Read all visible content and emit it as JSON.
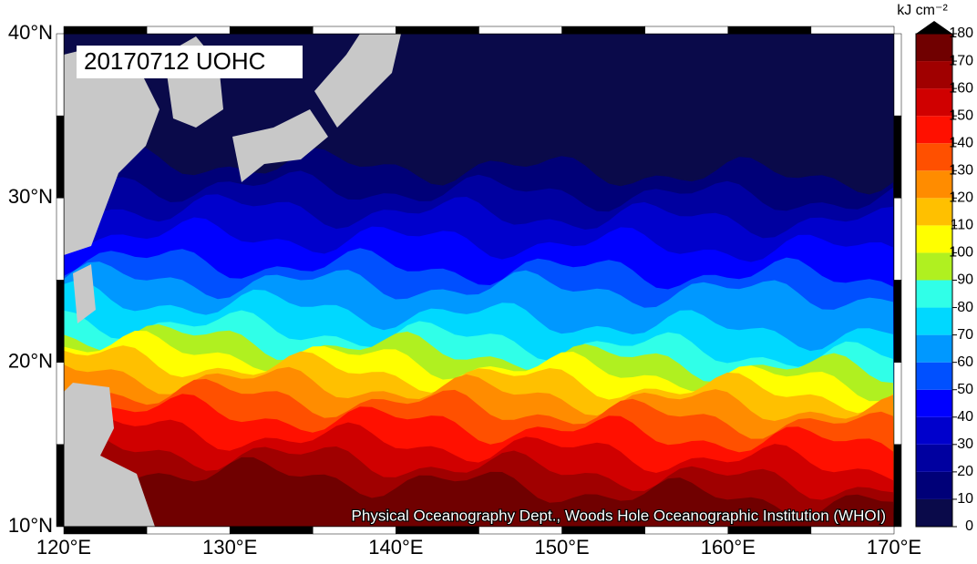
{
  "title": "20170712 UOHC",
  "credit": "Physical Oceanography Dept., Woods Hole Oceanographic Institution (WHOI)",
  "latitude_labels": [
    "10°N",
    "20°N",
    "30°N",
    "40°N"
  ],
  "longitude_labels": [
    "120°E",
    "130°E",
    "140°E",
    "150°E",
    "160°E",
    "170°E"
  ],
  "colorbar": {
    "unit": "kJ cm⁻²",
    "ticks": [
      0,
      10,
      20,
      30,
      40,
      50,
      60,
      70,
      80,
      90,
      100,
      110,
      120,
      130,
      140,
      150,
      160,
      170,
      180
    ],
    "colors": [
      "#0a0a4a",
      "#000078",
      "#0000a0",
      "#0000cc",
      "#0000ff",
      "#0050ff",
      "#0098ff",
      "#00d8ff",
      "#30ffe8",
      "#b0f020",
      "#ffff00",
      "#ffc000",
      "#ff8c00",
      "#ff5000",
      "#ff1000",
      "#d00000",
      "#a00000",
      "#700000",
      "#380000"
    ],
    "extend_color": "#000000"
  }
}
